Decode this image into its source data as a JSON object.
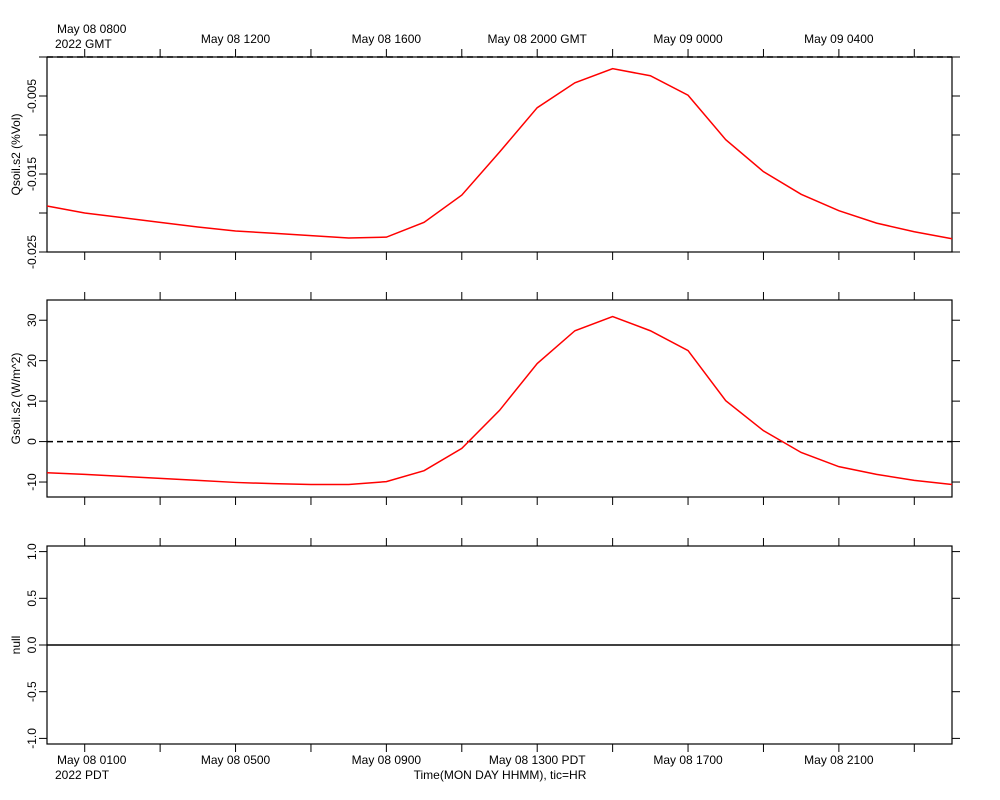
{
  "chart_data": {
    "type": "line",
    "xlabel": "Time(MON DAY HHMM), tic=HR",
    "annotations": [
      "2022 GMT",
      "2022 PDT"
    ],
    "x": [
      0,
      1,
      2,
      3,
      4,
      5,
      6,
      7,
      8,
      9,
      10,
      11,
      12,
      13,
      14,
      15,
      16,
      17,
      18,
      19,
      20,
      21,
      22,
      23,
      24
    ],
    "xlim": [
      0,
      24
    ],
    "xticks": [
      {
        "value": 1,
        "label": "May 08 0100"
      },
      {
        "value": 5,
        "label": "May 08 0500"
      },
      {
        "value": 9,
        "label": "May 08 0900"
      },
      {
        "value": 13,
        "label": "May 08 1300 PDT"
      },
      {
        "value": 17,
        "label": "May 08 1700"
      },
      {
        "value": 21,
        "label": "May 08 2100"
      }
    ],
    "x2ticks": [
      {
        "value": 1,
        "label": "May 08 0800"
      },
      {
        "value": 5,
        "label": "May 08 1200"
      },
      {
        "value": 9,
        "label": "May 08 1600"
      },
      {
        "value": 13,
        "label": "May 08 2000 GMT"
      },
      {
        "value": 17,
        "label": "May 09 0000"
      },
      {
        "value": 21,
        "label": "May 09 0400"
      }
    ],
    "xminor": [
      3,
      7,
      11,
      15,
      19,
      23
    ],
    "panels": [
      {
        "ylabel": "Qsoil.s2 (%Vol)",
        "ylim": [
          -0.025,
          0
        ],
        "yticks": [
          -0.005,
          -0.015,
          -0.025
        ],
        "yminor": [
          0,
          -0.01,
          -0.02
        ],
        "hline": {
          "value": 0,
          "style": "dashed"
        },
        "series": [
          {
            "color": "#ff0000",
            "values": [
              -0.0191,
              -0.02,
              -0.0206,
              -0.0212,
              -0.0218,
              -0.0223,
              -0.0226,
              -0.0229,
              -0.0232,
              -0.0231,
              -0.0212,
              -0.0177,
              -0.0122,
              -0.0065,
              -0.0033,
              -0.0015,
              -0.0024,
              -0.0049,
              -0.0106,
              -0.0147,
              -0.0176,
              -0.0197,
              -0.0213,
              -0.0224,
              -0.0233
            ]
          }
        ]
      },
      {
        "ylabel": "Gsoil.s2 (W/m^2)",
        "ylim": [
          -13.7,
          35
        ],
        "yticks": [
          30,
          20,
          10,
          0,
          -10
        ],
        "yminor": [],
        "hline": {
          "value": 0,
          "style": "dashed"
        },
        "series": [
          {
            "color": "#ff0000",
            "values": [
              -7.7,
              -8.1,
              -8.6,
              -9.1,
              -9.6,
              -10.1,
              -10.4,
              -10.6,
              -10.6,
              -9.9,
              -7.2,
              -1.7,
              7.7,
              19.3,
              27.4,
              30.9,
              27.4,
              22.5,
              10.1,
              2.7,
              -2.7,
              -6.2,
              -8.1,
              -9.6,
              -10.6
            ]
          }
        ]
      },
      {
        "ylabel": "null",
        "ylim": [
          -1.06,
          1.06
        ],
        "yticks": [
          {
            "value": 1,
            "label": "1.0"
          },
          {
            "value": 0.5,
            "label": "0.5"
          },
          {
            "value": 0,
            "label": "0.0"
          },
          {
            "value": -0.5,
            "label": "-0.5"
          },
          {
            "value": -1,
            "label": "-1.0"
          }
        ],
        "yminor": [],
        "hline": {
          "value": 0,
          "style": "solid"
        },
        "series": []
      }
    ]
  }
}
